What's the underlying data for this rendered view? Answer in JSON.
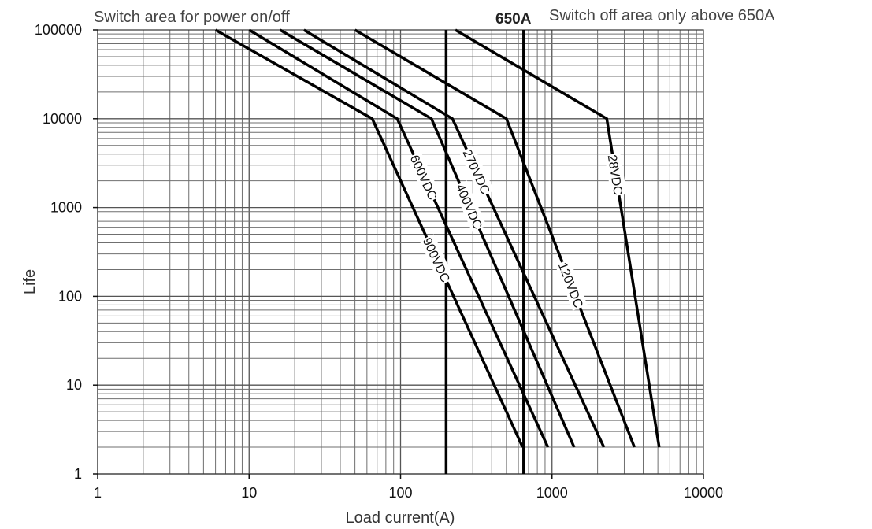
{
  "chart_data": {
    "type": "line",
    "title": "",
    "xlabel": "Load current(A)",
    "ylabel": "Life",
    "x_scale": "log",
    "y_scale": "log",
    "xlim": [
      1,
      10000
    ],
    "ylim": [
      1,
      100000
    ],
    "x_ticks": [
      1,
      10,
      100,
      1000,
      10000
    ],
    "x_tick_labels": [
      "1",
      "10",
      "100",
      "1000",
      "10000"
    ],
    "y_ticks": [
      1,
      10,
      100,
      1000,
      10000,
      100000
    ],
    "y_tick_labels": [
      "1",
      "10",
      "100",
      "1000",
      "10000",
      "100000"
    ],
    "grid": true,
    "annotations": {
      "left_region": "Switch area for power on/off",
      "current_limit": "650A",
      "right_region": "Switch off area only above 650A"
    },
    "reference_lines": [
      {
        "x": 200
      },
      {
        "x": 650
      }
    ],
    "series": [
      {
        "name": "900VDC",
        "x": [
          6,
          65,
          640
        ],
        "y": [
          100000,
          10000,
          2
        ]
      },
      {
        "name": "600VDC",
        "x": [
          10,
          95,
          940
        ],
        "y": [
          100000,
          10000,
          2
        ]
      },
      {
        "name": "400VDC",
        "x": [
          16,
          160,
          1400
        ],
        "y": [
          100000,
          10000,
          2
        ]
      },
      {
        "name": "270VDC",
        "x": [
          23,
          220,
          2200
        ],
        "y": [
          100000,
          10000,
          2
        ]
      },
      {
        "name": "120VDC",
        "x": [
          50,
          500,
          3500
        ],
        "y": [
          100000,
          10000,
          2
        ]
      },
      {
        "name": "28VDC",
        "x": [
          230,
          2300,
          5100
        ],
        "y": [
          100000,
          10000,
          2
        ]
      }
    ]
  }
}
